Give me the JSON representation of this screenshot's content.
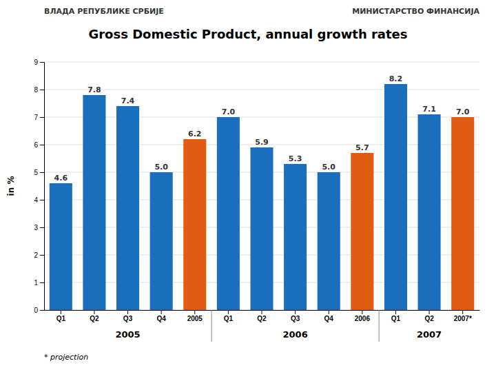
{
  "chart_data": {
    "type": "bar",
    "title": "Gross Domestic Product, annual growth rates",
    "annotations": [
      "ВЛАДА РЕПУБЛИКЕ СРБИЈЕ",
      "МИНИСТАРСТВО ФИНАНСИЈА",
      "* projection"
    ],
    "group_labels": [
      "2005",
      "2006",
      "2007"
    ],
    "y_label": "in %",
    "categories": [
      "Q1",
      "Q2",
      "Q3",
      "Q4",
      "2005",
      "Q1",
      "Q2",
      "Q3",
      "Q4",
      "2006",
      "Q1",
      "Q2",
      "2007*"
    ],
    "values": [
      4.6,
      7.8,
      7.4,
      5.0,
      6.2,
      7.0,
      5.9,
      5.3,
      5.0,
      5.7,
      8.2,
      7.1,
      7.0
    ],
    "value_labels": [
      "4.6",
      "7.8",
      "7.4",
      "5.0",
      "6.2",
      "7.0",
      "5.9",
      "5.3",
      "5.0",
      "5.7",
      "8.2",
      "7.1",
      "7.0"
    ],
    "colors": [
      "#1a6fbd",
      "#1a6fbd",
      "#1a6fbd",
      "#1a6fbd",
      "#e05c10",
      "#1a6fbd",
      "#1a6fbd",
      "#1a6fbd",
      "#1a6fbd",
      "#e05c10",
      "#1a6fbd",
      "#1a6fbd",
      "#e05c10"
    ],
    "ylim": [
      0,
      9
    ],
    "yticks": [
      0,
      1,
      2,
      3,
      4,
      5,
      6,
      7,
      8,
      9
    ],
    "grid": true,
    "data_labels": true
  }
}
